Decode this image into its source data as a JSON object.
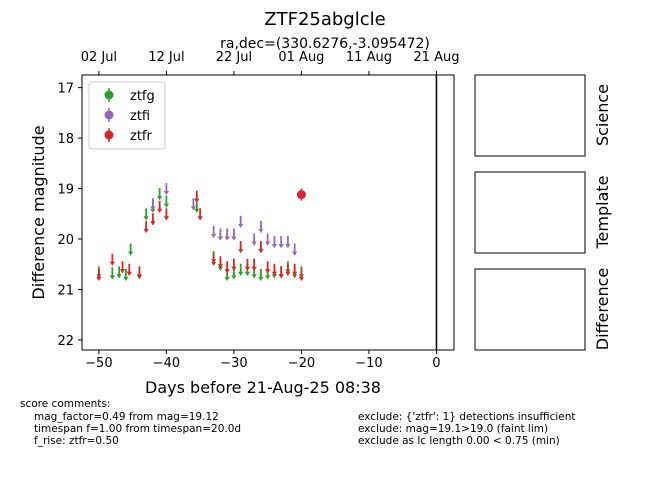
{
  "chart_data": {
    "type": "scatter",
    "title": "ZTF25abglcle",
    "subtitle": "ra,dec=(330.6276,-3.095472)",
    "xlabel": "Days before 21-Aug-25 08:38",
    "ylabel": "Difference magnitude",
    "xlim": [
      -52.5,
      2.6
    ],
    "ylim": [
      22.2,
      16.75
    ],
    "x_ticks": [
      -50,
      -40,
      -30,
      -20,
      -10,
      0
    ],
    "x_tick_labels": [
      "−50",
      "−40",
      "−30",
      "−20",
      "−10",
      "0"
    ],
    "y_ticks": [
      17,
      18,
      19,
      20,
      21,
      22
    ],
    "y_tick_labels": [
      "17",
      "18",
      "19",
      "20",
      "21",
      "22"
    ],
    "top_axis_ticks": [
      -50,
      -40,
      -30,
      -20,
      -10,
      0
    ],
    "top_axis_labels": [
      "02 Jul",
      "12 Jul",
      "22 Jul",
      "01 Aug",
      "11 Aug",
      "21 Aug"
    ],
    "vline_x": 0,
    "legend_position": "upper-left",
    "series": [
      {
        "name": "ztfg",
        "color": "#2ca02c",
        "detections": [],
        "upper_limits": [
          {
            "x": -50,
            "y": 20.7
          },
          {
            "x": -48,
            "y": 20.72
          },
          {
            "x": -47,
            "y": 20.7
          },
          {
            "x": -46,
            "y": 20.75
          },
          {
            "x": -45.3,
            "y": 20.25
          },
          {
            "x": -44,
            "y": 20.72
          },
          {
            "x": -43,
            "y": 19.55
          },
          {
            "x": -42,
            "y": 19.4
          },
          {
            "x": -41,
            "y": 19.15
          },
          {
            "x": -40,
            "y": 19.3
          },
          {
            "x": -35.5,
            "y": 19.4
          },
          {
            "x": -33,
            "y": 20.4
          },
          {
            "x": -32,
            "y": 20.55
          },
          {
            "x": -31,
            "y": 20.75
          },
          {
            "x": -30,
            "y": 20.72
          },
          {
            "x": -29,
            "y": 20.65
          },
          {
            "x": -28,
            "y": 20.65
          },
          {
            "x": -27,
            "y": 20.7
          },
          {
            "x": -26,
            "y": 20.75
          },
          {
            "x": -25,
            "y": 20.72
          },
          {
            "x": -24,
            "y": 20.7
          },
          {
            "x": -23,
            "y": 20.7
          },
          {
            "x": -22,
            "y": 20.6
          },
          {
            "x": -21,
            "y": 20.7
          },
          {
            "x": -20,
            "y": 20.7
          }
        ]
      },
      {
        "name": "ztfi",
        "color": "#9467bd",
        "detections": [],
        "upper_limits": [
          {
            "x": -42,
            "y": 19.35
          },
          {
            "x": -40,
            "y": 19.05
          },
          {
            "x": -36,
            "y": 19.35
          },
          {
            "x": -33,
            "y": 19.9
          },
          {
            "x": -32,
            "y": 19.95
          },
          {
            "x": -31,
            "y": 19.95
          },
          {
            "x": -30,
            "y": 19.95
          },
          {
            "x": -29,
            "y": 19.7
          },
          {
            "x": -27,
            "y": 20.05
          },
          {
            "x": -26,
            "y": 19.8
          },
          {
            "x": -25,
            "y": 20.05
          },
          {
            "x": -24,
            "y": 20.1
          },
          {
            "x": -23,
            "y": 20.1
          },
          {
            "x": -22,
            "y": 20.1
          },
          {
            "x": -21,
            "y": 20.25
          }
        ]
      },
      {
        "name": "ztfr",
        "color": "#d62728",
        "detections": [
          {
            "x": -20,
            "y": 19.12,
            "err": 0.12
          }
        ],
        "upper_limits": [
          {
            "x": -50,
            "y": 20.75
          },
          {
            "x": -48,
            "y": 20.45
          },
          {
            "x": -46.5,
            "y": 20.6
          },
          {
            "x": -45.5,
            "y": 20.65
          },
          {
            "x": -44,
            "y": 20.7
          },
          {
            "x": -43,
            "y": 19.8
          },
          {
            "x": -42,
            "y": 19.65
          },
          {
            "x": -41,
            "y": 19.4
          },
          {
            "x": -40,
            "y": 19.55
          },
          {
            "x": -35.5,
            "y": 19.2
          },
          {
            "x": -35,
            "y": 19.55
          },
          {
            "x": -33,
            "y": 20.45
          },
          {
            "x": -32,
            "y": 20.5
          },
          {
            "x": -31,
            "y": 20.6
          },
          {
            "x": -30,
            "y": 20.55
          },
          {
            "x": -29,
            "y": 20.2
          },
          {
            "x": -28,
            "y": 20.55
          },
          {
            "x": -27,
            "y": 20.55
          },
          {
            "x": -26,
            "y": 20.2
          },
          {
            "x": -25,
            "y": 20.6
          },
          {
            "x": -24,
            "y": 20.65
          },
          {
            "x": -23,
            "y": 20.7
          },
          {
            "x": -22,
            "y": 20.65
          },
          {
            "x": -21,
            "y": 20.65
          },
          {
            "x": -20,
            "y": 20.75
          }
        ]
      }
    ]
  },
  "panels": {
    "science_label": "Science",
    "template_label": "Template",
    "difference_label": "Difference"
  },
  "comments": {
    "header": "score comments:",
    "left_lines": [
      "mag_factor=0.49 from mag=19.12",
      "timespan f=1.00 from timespan=20.0d",
      "f_rise: ztfr=0.50"
    ],
    "right_lines": [
      "exclude: {'ztfr': 1} detections insufficient",
      "exclude: mag=19.1>19.0 (faint lim)",
      "exclude as lc length 0.00 < 0.75 (min)"
    ]
  }
}
